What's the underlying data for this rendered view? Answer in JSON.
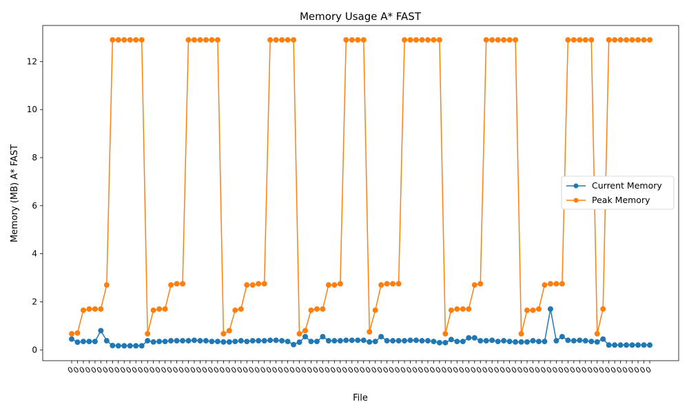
{
  "chart_data": {
    "type": "line",
    "title": "Memory Usage A* FAST",
    "xlabel": "File",
    "ylabel": "Memory (MB) A* FAST",
    "ylim": [
      -0.45,
      13.5
    ],
    "yticks": [
      0,
      2,
      4,
      6,
      8,
      10,
      12
    ],
    "xtick_label": "0",
    "grid": false,
    "legend_position": "center-right",
    "colors": {
      "current": "#1f77b4",
      "peak": "#ff7f0e"
    },
    "series": [
      {
        "name": "Current Memory",
        "values": [
          0.45,
          0.32,
          0.35,
          0.35,
          0.35,
          0.8,
          0.38,
          0.18,
          0.17,
          0.17,
          0.17,
          0.17,
          0.17,
          0.38,
          0.33,
          0.35,
          0.35,
          0.38,
          0.38,
          0.38,
          0.38,
          0.4,
          0.38,
          0.38,
          0.35,
          0.35,
          0.33,
          0.33,
          0.35,
          0.38,
          0.35,
          0.38,
          0.38,
          0.38,
          0.4,
          0.4,
          0.38,
          0.35,
          0.22,
          0.32,
          0.55,
          0.35,
          0.35,
          0.55,
          0.38,
          0.38,
          0.38,
          0.4,
          0.4,
          0.4,
          0.4,
          0.33,
          0.35,
          0.55,
          0.38,
          0.38,
          0.38,
          0.38,
          0.4,
          0.4,
          0.38,
          0.38,
          0.35,
          0.3,
          0.3,
          0.43,
          0.35,
          0.35,
          0.5,
          0.5,
          0.38,
          0.38,
          0.4,
          0.35,
          0.38,
          0.35,
          0.33,
          0.33,
          0.33,
          0.38,
          0.35,
          0.35,
          1.7,
          0.38,
          0.55,
          0.4,
          0.38,
          0.4,
          0.38,
          0.35,
          0.33,
          0.45,
          0.2,
          0.2,
          0.2,
          0.2,
          0.2,
          0.2,
          0.2,
          0.2
        ]
      },
      {
        "name": "Peak Memory",
        "values": [
          0.67,
          0.7,
          1.65,
          1.7,
          1.7,
          1.7,
          2.7,
          12.9,
          12.9,
          12.9,
          12.9,
          12.9,
          12.9,
          0.67,
          1.65,
          1.7,
          1.7,
          2.7,
          2.75,
          2.75,
          12.9,
          12.9,
          12.9,
          12.9,
          12.9,
          12.9,
          0.67,
          0.8,
          1.65,
          1.7,
          2.7,
          2.7,
          2.75,
          2.75,
          12.9,
          12.9,
          12.9,
          12.9,
          12.9,
          0.67,
          0.8,
          1.65,
          1.7,
          1.7,
          2.7,
          2.7,
          2.75,
          12.9,
          12.9,
          12.9,
          12.9,
          0.75,
          1.65,
          2.7,
          2.75,
          2.75,
          2.75,
          12.9,
          12.9,
          12.9,
          12.9,
          12.9,
          12.9,
          12.9,
          0.67,
          1.65,
          1.7,
          1.7,
          1.7,
          2.7,
          2.75,
          12.9,
          12.9,
          12.9,
          12.9,
          12.9,
          12.9,
          0.67,
          1.65,
          1.65,
          1.7,
          2.7,
          2.75,
          2.75,
          2.75,
          12.9,
          12.9,
          12.9,
          12.9,
          12.9,
          0.67,
          1.7,
          12.9,
          12.9,
          12.9,
          12.9,
          12.9,
          12.9,
          12.9,
          12.9
        ]
      }
    ]
  }
}
